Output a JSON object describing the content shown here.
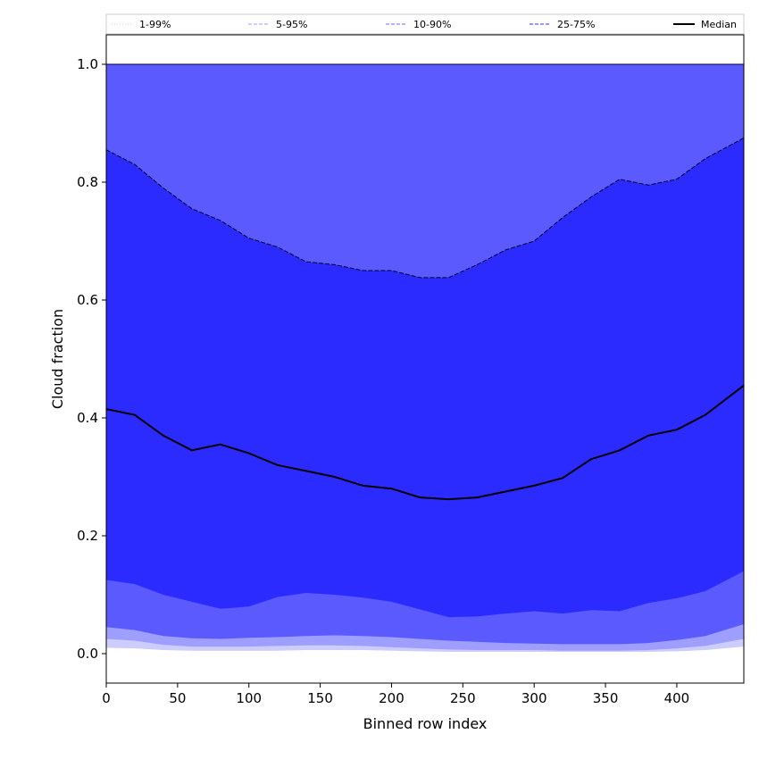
{
  "chart_data": {
    "type": "area",
    "xlabel": "Binned row index",
    "ylabel": "Cloud fraction",
    "xlim": [
      0,
      447
    ],
    "ylim": [
      -0.05,
      1.05
    ],
    "xticks": [
      0,
      50,
      100,
      150,
      200,
      250,
      300,
      350,
      400
    ],
    "yticks": [
      0.0,
      0.2,
      0.4,
      0.6,
      0.8,
      1.0
    ],
    "xtick_labels": [
      "0",
      "50",
      "100",
      "150",
      "200",
      "250",
      "300",
      "350",
      "400"
    ],
    "ytick_labels": [
      "0.0",
      "0.2",
      "0.4",
      "0.6",
      "0.8",
      "1.0"
    ],
    "legend": {
      "placement": "top, above plot",
      "entries": [
        {
          "label": "1-99%",
          "color": "#d8d8ff",
          "style": "dotted"
        },
        {
          "label": "5-95%",
          "color": "#b0b0ff",
          "style": "dashed"
        },
        {
          "label": "10-90%",
          "color": "#8888ff",
          "style": "dashed"
        },
        {
          "label": "25-75%",
          "color": "#5a5aff",
          "style": "dashed"
        },
        {
          "label": "Median",
          "color": "#000000",
          "style": "solid"
        }
      ]
    },
    "x": [
      0,
      20,
      40,
      60,
      80,
      100,
      120,
      140,
      160,
      180,
      200,
      220,
      240,
      260,
      280,
      300,
      320,
      340,
      360,
      380,
      400,
      420,
      447
    ],
    "bands": [
      {
        "name": "1-99%",
        "color": "#ccccff",
        "lower": [
          0.01,
          0.009,
          0.006,
          0.005,
          0.005,
          0.005,
          0.005,
          0.006,
          0.006,
          0.006,
          0.005,
          0.004,
          0.003,
          0.003,
          0.003,
          0.003,
          0.003,
          0.003,
          0.003,
          0.003,
          0.004,
          0.006,
          0.012
        ],
        "upper": [
          1.0,
          1.0,
          1.0,
          1.0,
          1.0,
          1.0,
          1.0,
          1.0,
          1.0,
          1.0,
          1.0,
          1.0,
          1.0,
          1.0,
          1.0,
          1.0,
          1.0,
          1.0,
          1.0,
          1.0,
          1.0,
          1.0,
          1.0
        ]
      },
      {
        "name": "5-95%",
        "color": "#9e9eff",
        "lower": [
          0.025,
          0.022,
          0.015,
          0.012,
          0.012,
          0.012,
          0.013,
          0.014,
          0.014,
          0.013,
          0.011,
          0.009,
          0.007,
          0.006,
          0.006,
          0.006,
          0.005,
          0.005,
          0.005,
          0.006,
          0.009,
          0.013,
          0.025
        ],
        "upper": [
          1.0,
          1.0,
          1.0,
          1.0,
          1.0,
          1.0,
          1.0,
          1.0,
          1.0,
          1.0,
          1.0,
          1.0,
          1.0,
          1.0,
          1.0,
          1.0,
          1.0,
          1.0,
          1.0,
          1.0,
          1.0,
          1.0,
          1.0
        ]
      },
      {
        "name": "10-90%",
        "color": "#5a5aff",
        "lower": [
          0.045,
          0.04,
          0.03,
          0.026,
          0.025,
          0.027,
          0.028,
          0.03,
          0.031,
          0.03,
          0.028,
          0.025,
          0.022,
          0.02,
          0.018,
          0.017,
          0.016,
          0.016,
          0.016,
          0.018,
          0.023,
          0.03,
          0.05
        ],
        "upper": [
          1.0,
          1.0,
          1.0,
          1.0,
          1.0,
          1.0,
          1.0,
          1.0,
          1.0,
          1.0,
          1.0,
          1.0,
          1.0,
          1.0,
          1.0,
          1.0,
          1.0,
          1.0,
          1.0,
          1.0,
          1.0,
          1.0,
          1.0
        ]
      },
      {
        "name": "25-75%",
        "color": "#2b2bff",
        "lower": [
          0.125,
          0.118,
          0.1,
          0.088,
          0.076,
          0.08,
          0.096,
          0.103,
          0.1,
          0.095,
          0.088,
          0.075,
          0.062,
          0.063,
          0.068,
          0.072,
          0.068,
          0.074,
          0.072,
          0.086,
          0.094,
          0.106,
          0.14
        ],
        "upper": [
          0.855,
          0.83,
          0.79,
          0.755,
          0.735,
          0.705,
          0.69,
          0.665,
          0.66,
          0.65,
          0.65,
          0.638,
          0.638,
          0.66,
          0.685,
          0.7,
          0.74,
          0.775,
          0.805,
          0.795,
          0.805,
          0.84,
          0.875
        ]
      }
    ],
    "series": [
      {
        "name": "Median",
        "color": "#000000",
        "values": [
          0.415,
          0.405,
          0.37,
          0.345,
          0.355,
          0.34,
          0.32,
          0.31,
          0.3,
          0.285,
          0.28,
          0.265,
          0.262,
          0.265,
          0.275,
          0.285,
          0.298,
          0.33,
          0.345,
          0.37,
          0.38,
          0.405,
          0.455
        ]
      }
    ]
  }
}
